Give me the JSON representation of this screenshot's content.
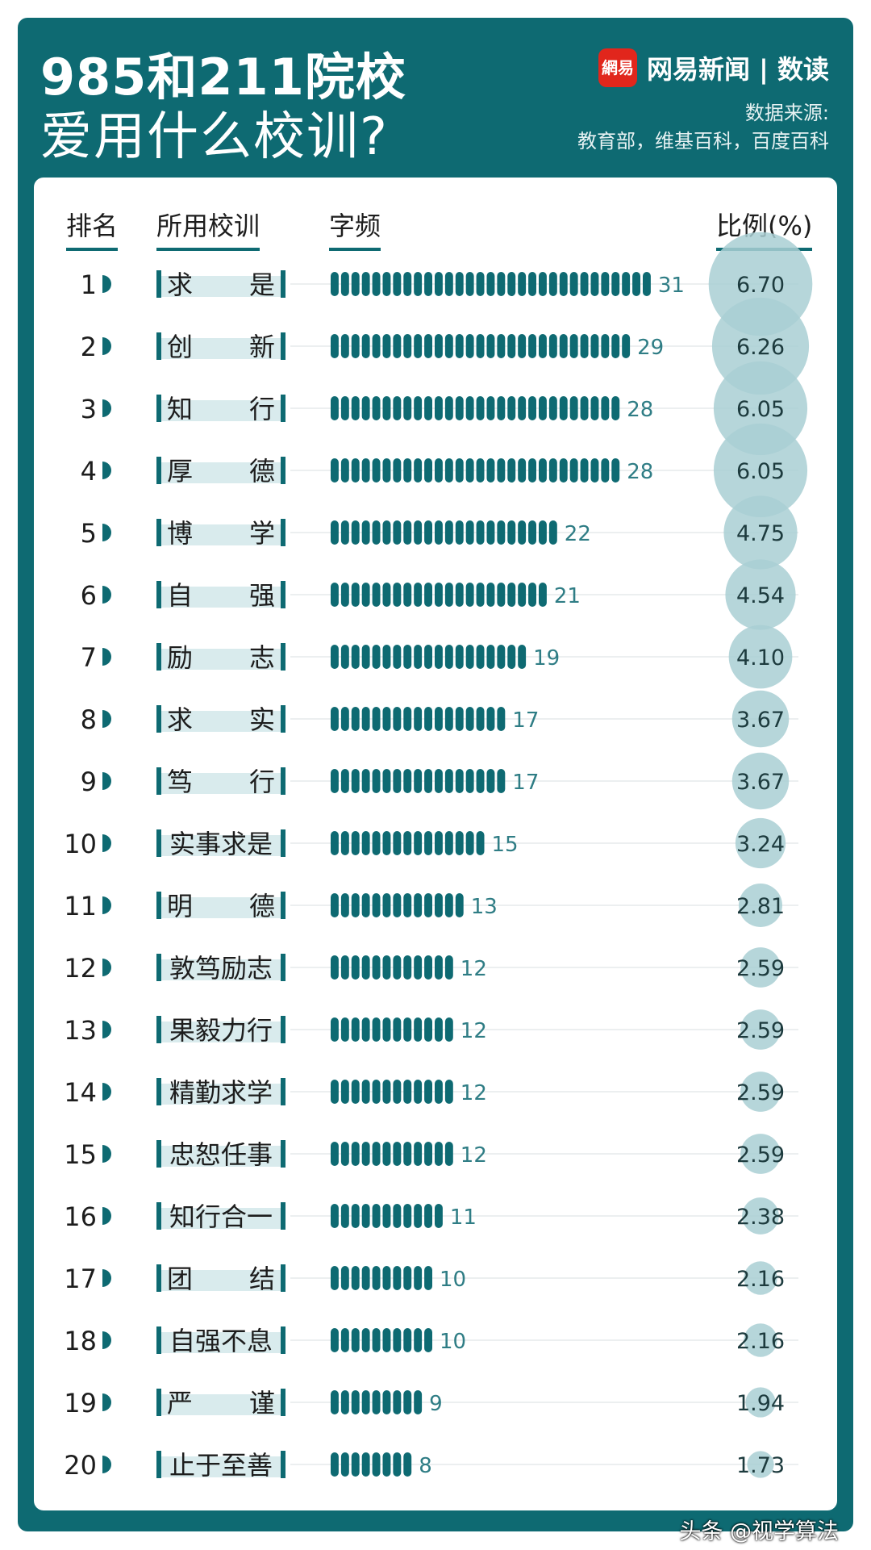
{
  "header": {
    "title_line1": "985和211院校",
    "title_line2": "爱用什么校训?",
    "brand_logo_text": "網易",
    "brand_name": "网易新闻 | 数读",
    "source_label": "数据来源:",
    "source_text": "教育部，维基百科，百度百科"
  },
  "columns": {
    "rank": "排名",
    "motto": "所用校训",
    "freq": "字频",
    "ratio": "比例(%)"
  },
  "watermark": "头条 @视学算法",
  "colors": {
    "panel": "#0e6a72",
    "bar": "#0e6a72",
    "bubble": "#a9cfd3",
    "label_band": "#d9ebed",
    "brand_red": "#e1261c"
  },
  "chart_data": {
    "type": "bar",
    "categories": [
      "求是",
      "创新",
      "知行",
      "厚德",
      "博学",
      "自强",
      "励志",
      "求实",
      "笃行",
      "实事求是",
      "明德",
      "敦笃励志",
      "果毅力行",
      "精勤求学",
      "忠恕任事",
      "知行合一",
      "团结",
      "自强不息",
      "严谨",
      "止于至善"
    ],
    "ranks": [
      "1",
      "2",
      "3",
      "4",
      "5",
      "6",
      "7",
      "8",
      "9",
      "10",
      "11",
      "12",
      "13",
      "14",
      "15",
      "16",
      "17",
      "18",
      "19",
      "20"
    ],
    "series": [
      {
        "name": "字频",
        "values": [
          31,
          29,
          28,
          28,
          22,
          21,
          19,
          17,
          17,
          15,
          13,
          12,
          12,
          12,
          12,
          11,
          10,
          10,
          9,
          8
        ]
      },
      {
        "name": "比例(%)",
        "values": [
          "6.70",
          "6.26",
          "6.05",
          "6.05",
          "4.75",
          "4.54",
          "4.10",
          "3.67",
          "3.67",
          "3.24",
          "2.81",
          "2.59",
          "2.59",
          "2.59",
          "2.59",
          "2.38",
          "2.16",
          "2.16",
          "1.94",
          "1.73"
        ]
      }
    ]
  }
}
